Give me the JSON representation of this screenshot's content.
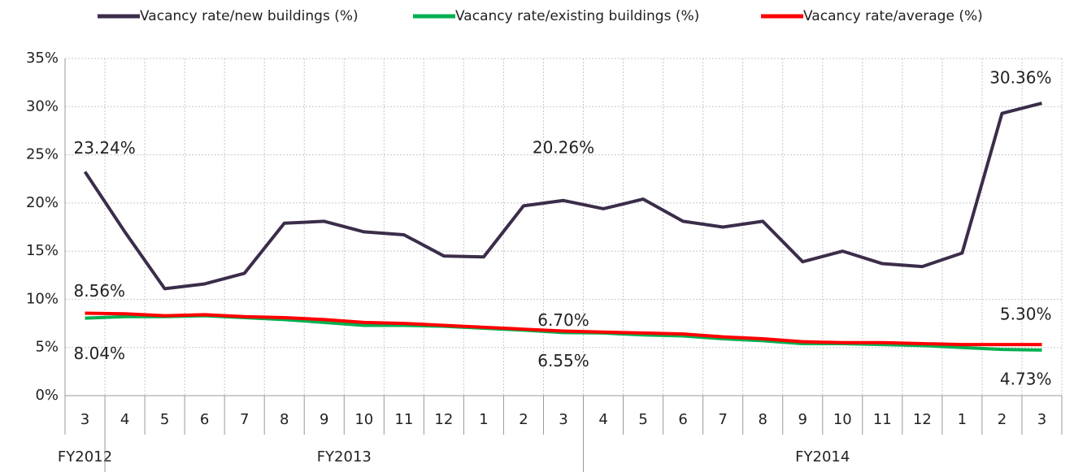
{
  "chart_data": {
    "type": "line",
    "categories": [
      "3",
      "4",
      "5",
      "6",
      "7",
      "8",
      "9",
      "10",
      "11",
      "12",
      "1",
      "2",
      "3",
      "4",
      "5",
      "6",
      "7",
      "8",
      "9",
      "10",
      "11",
      "12",
      "1",
      "2",
      "3"
    ],
    "groups": [
      {
        "name": "FY2012",
        "span": 1
      },
      {
        "name": "FY2013",
        "span": 12
      },
      {
        "name": "FY2014",
        "span": 12
      }
    ],
    "series": [
      {
        "name": "Vacancy rate/new buildings (%)",
        "color": "#3b2d4a",
        "values": [
          23.24,
          17.0,
          11.1,
          11.6,
          12.7,
          17.9,
          18.1,
          17.0,
          16.7,
          14.5,
          14.4,
          19.7,
          20.26,
          19.4,
          20.4,
          18.1,
          17.5,
          18.1,
          13.9,
          15.0,
          13.7,
          13.4,
          14.8,
          29.3,
          30.36
        ],
        "value_labels": [
          "23.24%",
          null,
          null,
          null,
          null,
          null,
          null,
          null,
          null,
          null,
          null,
          null,
          "20.26%",
          null,
          null,
          null,
          null,
          null,
          null,
          null,
          null,
          null,
          null,
          null,
          "30.36%"
        ]
      },
      {
        "name": "Vacancy rate/existing buildings (%)",
        "color": "#00b050",
        "values": [
          8.04,
          8.2,
          8.2,
          8.3,
          8.1,
          7.9,
          7.6,
          7.3,
          7.3,
          7.2,
          7.0,
          6.8,
          6.55,
          6.5,
          6.3,
          6.2,
          5.9,
          5.7,
          5.4,
          5.4,
          5.3,
          5.2,
          5.0,
          4.8,
          4.73
        ],
        "value_labels": [
          "8.04%",
          null,
          null,
          null,
          null,
          null,
          null,
          null,
          null,
          null,
          null,
          null,
          "6.55%",
          null,
          null,
          null,
          null,
          null,
          null,
          null,
          null,
          null,
          null,
          null,
          "4.73%"
        ]
      },
      {
        "name": "Vacancy rate/average (%)",
        "color": "#ff0000",
        "values": [
          8.56,
          8.5,
          8.3,
          8.4,
          8.2,
          8.1,
          7.9,
          7.6,
          7.5,
          7.3,
          7.1,
          6.9,
          6.7,
          6.6,
          6.5,
          6.4,
          6.1,
          5.9,
          5.6,
          5.5,
          5.5,
          5.4,
          5.3,
          5.3,
          5.3
        ],
        "value_labels": [
          "8.56%",
          null,
          null,
          null,
          null,
          null,
          null,
          null,
          null,
          null,
          null,
          null,
          "6.70%",
          null,
          null,
          null,
          null,
          null,
          null,
          null,
          null,
          null,
          null,
          null,
          "5.30%"
        ]
      }
    ],
    "ylim": [
      0,
      35
    ],
    "yticks": [
      {
        "value": 0,
        "label": "0%"
      },
      {
        "value": 5,
        "label": "5%"
      },
      {
        "value": 10,
        "label": "10%"
      },
      {
        "value": 15,
        "label": "15%"
      },
      {
        "value": 20,
        "label": "20%"
      },
      {
        "value": 25,
        "label": "25%"
      },
      {
        "value": 30,
        "label": "30%"
      },
      {
        "value": 35,
        "label": "35%"
      }
    ],
    "grid": true,
    "legend": "top"
  }
}
